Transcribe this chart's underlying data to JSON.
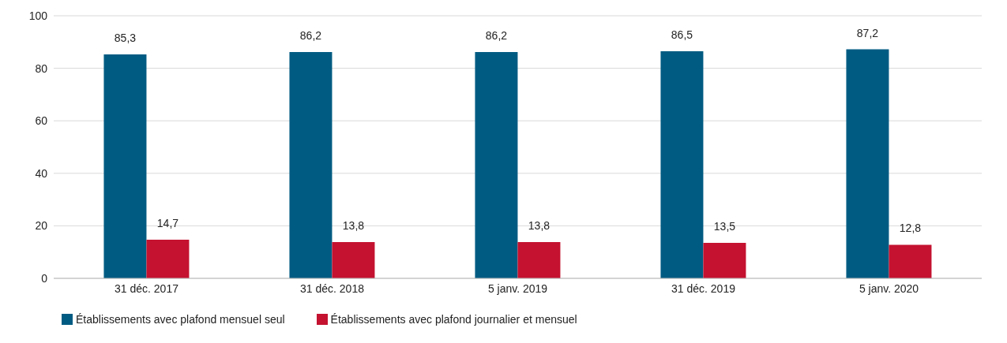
{
  "chart_data": {
    "type": "bar",
    "categories": [
      "31 déc. 2017",
      "31 déc. 2018",
      "5 janv. 2019",
      "31 déc. 2019",
      "5 janv. 2020"
    ],
    "series": [
      {
        "name": "Établissements avec plafond mensuel seul",
        "color": "#005b82",
        "values": [
          85.3,
          86.2,
          86.2,
          86.5,
          87.2
        ],
        "value_labels": [
          "85,3",
          "86,2",
          "86,2",
          "86,5",
          "87,2"
        ]
      },
      {
        "name": "Établissements avec plafond journalier et mensuel",
        "color": "#c41230",
        "values": [
          14.7,
          13.8,
          13.8,
          13.5,
          12.8
        ],
        "value_labels": [
          "14,7",
          "13,8",
          "13,8",
          "13,5",
          "12,8"
        ]
      }
    ],
    "ylim": [
      0,
      100
    ],
    "yticks": [
      0,
      20,
      40,
      60,
      80,
      100
    ],
    "grid": "y",
    "legend": "bottom left"
  }
}
